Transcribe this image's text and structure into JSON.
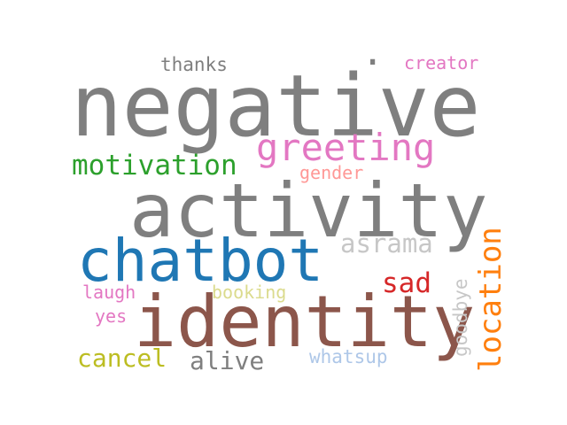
{
  "words": {
    "negative": {
      "text": "negative",
      "color": "#7f7f7f"
    },
    "activity": {
      "text": "activity",
      "color": "#7f7f7f"
    },
    "identity": {
      "text": "identity",
      "color": "#8c564b"
    },
    "chatbot": {
      "text": "chatbot",
      "color": "#1f77b4"
    },
    "greeting": {
      "text": "greeting",
      "color": "#e377c2"
    },
    "motivation": {
      "text": "motivation",
      "color": "#2ca02c"
    },
    "thanks": {
      "text": "thanks",
      "color": "#7f7f7f"
    },
    "creator": {
      "text": "creator",
      "color": "#e377c2"
    },
    "gender": {
      "text": "gender",
      "color": "#ff9896"
    },
    "asrama": {
      "text": "asrama",
      "color": "#c7c7c7"
    },
    "location": {
      "text": "location",
      "color": "#ff7f0e"
    },
    "sad": {
      "text": "sad",
      "color": "#d62728"
    },
    "goodbye": {
      "text": "goodbye",
      "color": "#c7c7c7"
    },
    "laugh": {
      "text": "laugh",
      "color": "#e377c2"
    },
    "booking": {
      "text": "booking",
      "color": "#dbdb8d"
    },
    "yes": {
      "text": "yes",
      "color": "#e377c2"
    },
    "cancel": {
      "text": "cancel",
      "color": "#bcbd22"
    },
    "alive": {
      "text": "alive",
      "color": "#7f7f7f"
    },
    "whatsup": {
      "text": "whatsup",
      "color": "#aec7e8"
    },
    "dot": {
      "text": ".",
      "color": "#7f7f7f"
    }
  }
}
